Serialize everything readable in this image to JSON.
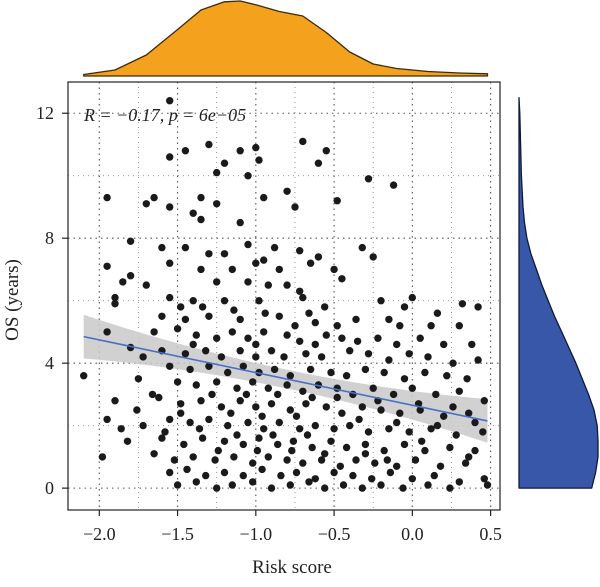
{
  "chart_data": {
    "type": "scatter",
    "xlabel": "Risk score",
    "ylabel": "OS (years)",
    "annotation": "R = −0.17, p = 6e−05",
    "xlim": [
      -2.2,
      0.56
    ],
    "ylim": [
      -0.7,
      13.0
    ],
    "xticks": [
      -2.0,
      -1.5,
      -1.0,
      -0.5,
      0.0,
      0.5
    ],
    "xtick_labels": [
      "−2.0",
      "−1.5",
      "−1.0",
      "−0.5",
      "0.0",
      "0.5"
    ],
    "yticks": [
      0,
      4,
      8,
      12
    ],
    "ytick_labels": [
      "0",
      "4",
      "8",
      "12"
    ],
    "grid": "dotted",
    "point_color": "#1a1a1a",
    "regression": {
      "x": [
        -2.1,
        0.48
      ],
      "y": [
        4.85,
        2.15
      ],
      "ci_half_width_at_ends": 0.7,
      "ci_half_width_center": 0.3,
      "line_color": "#4a6fc7",
      "band_color": "#c9c9c9"
    },
    "top_density": {
      "color": "#f4a21d",
      "x": [
        -2.1,
        -1.9,
        -1.7,
        -1.5,
        -1.35,
        -1.2,
        -1.1,
        -1.0,
        -0.85,
        -0.7,
        -0.55,
        -0.4,
        -0.25,
        -0.1,
        0.1,
        0.3,
        0.48
      ],
      "density": [
        0.02,
        0.08,
        0.28,
        0.62,
        0.88,
        0.99,
        1.0,
        0.95,
        0.86,
        0.8,
        0.58,
        0.32,
        0.16,
        0.1,
        0.06,
        0.04,
        0.03
      ]
    },
    "right_density": {
      "color": "#3857a8",
      "y": [
        0.0,
        0.5,
        1.0,
        1.5,
        2.0,
        2.5,
        3.0,
        3.5,
        4.0,
        4.5,
        5.0,
        5.5,
        6.0,
        6.5,
        7.0,
        7.5,
        8.0,
        8.5,
        9.0,
        10.0,
        11.0,
        12.0,
        12.5
      ],
      "density": [
        0.92,
        0.97,
        1.0,
        1.0,
        0.99,
        0.95,
        0.88,
        0.8,
        0.72,
        0.63,
        0.54,
        0.45,
        0.37,
        0.29,
        0.22,
        0.15,
        0.1,
        0.07,
        0.05,
        0.03,
        0.02,
        0.01,
        0.0
      ]
    },
    "points": [
      [
        -1.55,
        12.4
      ],
      [
        -1.3,
        11.0
      ],
      [
        -1.55,
        10.6
      ],
      [
        -1.45,
        10.8
      ],
      [
        -1.1,
        10.8
      ],
      [
        -1.0,
        10.9
      ],
      [
        -1.2,
        10.4
      ],
      [
        -0.98,
        10.5
      ],
      [
        -0.7,
        11.1
      ],
      [
        -0.55,
        10.8
      ],
      [
        -0.6,
        10.4
      ],
      [
        -1.25,
        10.1
      ],
      [
        -1.05,
        10.0
      ],
      [
        -0.12,
        9.7
      ],
      [
        -0.28,
        9.9
      ],
      [
        -1.65,
        9.3
      ],
      [
        -1.95,
        9.3
      ],
      [
        -1.55,
        9.0
      ],
      [
        -1.7,
        9.1
      ],
      [
        -1.35,
        9.3
      ],
      [
        -1.25,
        9.1
      ],
      [
        -1.4,
        8.8
      ],
      [
        -0.95,
        9.3
      ],
      [
        -0.8,
        9.5
      ],
      [
        -0.75,
        9.0
      ],
      [
        -0.48,
        9.2
      ],
      [
        -1.1,
        8.5
      ],
      [
        -1.35,
        8.6
      ],
      [
        -1.8,
        7.9
      ],
      [
        -1.6,
        7.7
      ],
      [
        -1.45,
        7.7
      ],
      [
        -1.3,
        7.5
      ],
      [
        -1.2,
        7.5
      ],
      [
        -1.05,
        7.8
      ],
      [
        -0.95,
        7.3
      ],
      [
        -0.88,
        7.7
      ],
      [
        -0.72,
        7.6
      ],
      [
        -0.6,
        7.4
      ],
      [
        -0.65,
        7.2
      ],
      [
        -0.32,
        7.7
      ],
      [
        -0.25,
        7.4
      ],
      [
        -1.95,
        7.1
      ],
      [
        -1.8,
        6.8
      ],
      [
        -1.55,
        7.2
      ],
      [
        -1.35,
        7.0
      ],
      [
        -1.15,
        7.0
      ],
      [
        -1.0,
        7.2
      ],
      [
        -0.85,
        7.0
      ],
      [
        -0.5,
        7.0
      ],
      [
        -0.45,
        6.7
      ],
      [
        -1.85,
        6.6
      ],
      [
        -1.7,
        6.5
      ],
      [
        -1.25,
        6.6
      ],
      [
        -1.05,
        6.6
      ],
      [
        -0.92,
        6.5
      ],
      [
        -0.8,
        6.5
      ],
      [
        -0.72,
        6.3
      ],
      [
        -1.9,
        6.1
      ],
      [
        -1.9,
        5.9
      ],
      [
        -1.55,
        6.1
      ],
      [
        -1.4,
        6.0
      ],
      [
        -1.2,
        6.0
      ],
      [
        -0.98,
        6.0
      ],
      [
        -0.7,
        6.1
      ],
      [
        -0.2,
        6.0
      ],
      [
        0.0,
        6.1
      ],
      [
        0.32,
        5.9
      ],
      [
        0.42,
        5.8
      ],
      [
        0.16,
        5.6
      ],
      [
        -0.05,
        5.8
      ],
      [
        -1.6,
        5.5
      ],
      [
        -1.45,
        5.4
      ],
      [
        -1.3,
        5.5
      ],
      [
        -1.1,
        5.4
      ],
      [
        -0.85,
        5.5
      ],
      [
        -0.75,
        5.2
      ],
      [
        -0.62,
        5.3
      ],
      [
        -0.48,
        5.2
      ],
      [
        -0.15,
        5.4
      ],
      [
        0.12,
        5.2
      ],
      [
        -1.95,
        5.0
      ],
      [
        -1.65,
        5.0
      ],
      [
        -1.5,
        5.1
      ],
      [
        -1.38,
        4.9
      ],
      [
        -1.25,
        4.8
      ],
      [
        -1.15,
        5.0
      ],
      [
        -1.05,
        4.8
      ],
      [
        -0.95,
        5.0
      ],
      [
        -0.8,
        4.9
      ],
      [
        -0.72,
        4.7
      ],
      [
        -0.55,
        4.9
      ],
      [
        -0.45,
        4.8
      ],
      [
        -0.35,
        4.7
      ],
      [
        -0.22,
        4.8
      ],
      [
        -0.1,
        4.6
      ],
      [
        0.05,
        4.8
      ],
      [
        0.2,
        4.6
      ],
      [
        0.38,
        4.6
      ],
      [
        -1.8,
        4.5
      ],
      [
        -1.6,
        4.4
      ],
      [
        -1.45,
        4.3
      ],
      [
        -1.32,
        4.4
      ],
      [
        -1.22,
        4.2
      ],
      [
        -1.1,
        4.4
      ],
      [
        -1.0,
        4.2
      ],
      [
        -0.9,
        4.4
      ],
      [
        -0.82,
        4.2
      ],
      [
        -0.68,
        4.3
      ],
      [
        -0.58,
        4.2
      ],
      [
        -0.4,
        4.4
      ],
      [
        -0.28,
        4.3
      ],
      [
        -0.15,
        4.1
      ],
      [
        -0.02,
        4.3
      ],
      [
        0.1,
        4.2
      ],
      [
        0.26,
        4.0
      ],
      [
        0.42,
        4.1
      ],
      [
        -1.55,
        3.9
      ],
      [
        -1.42,
        3.8
      ],
      [
        -1.3,
        3.9
      ],
      [
        -1.18,
        3.7
      ],
      [
        -1.08,
        3.9
      ],
      [
        -0.98,
        3.7
      ],
      [
        -0.88,
        3.8
      ],
      [
        -0.78,
        3.6
      ],
      [
        -0.65,
        3.8
      ],
      [
        -0.52,
        3.7
      ],
      [
        -0.42,
        3.6
      ],
      [
        -0.3,
        3.8
      ],
      [
        -0.18,
        3.7
      ],
      [
        -0.05,
        3.5
      ],
      [
        0.08,
        3.7
      ],
      [
        0.22,
        3.6
      ],
      [
        0.35,
        3.5
      ],
      [
        -2.1,
        3.6
      ],
      [
        -1.75,
        3.5
      ],
      [
        -1.5,
        3.4
      ],
      [
        -1.38,
        3.3
      ],
      [
        -1.25,
        3.4
      ],
      [
        -1.12,
        3.2
      ],
      [
        -1.02,
        3.4
      ],
      [
        -0.92,
        3.2
      ],
      [
        -0.8,
        3.3
      ],
      [
        -0.7,
        3.1
      ],
      [
        -0.6,
        3.3
      ],
      [
        -0.48,
        3.2
      ],
      [
        -0.38,
        3.0
      ],
      [
        -0.25,
        3.2
      ],
      [
        -0.12,
        3.0
      ],
      [
        0.0,
        3.2
      ],
      [
        0.15,
        3.0
      ],
      [
        0.3,
        3.1
      ],
      [
        0.46,
        2.8
      ],
      [
        -1.9,
        2.8
      ],
      [
        -1.62,
        2.9
      ],
      [
        -1.48,
        2.7
      ],
      [
        -1.35,
        2.8
      ],
      [
        -1.22,
        2.6
      ],
      [
        -1.1,
        2.8
      ],
      [
        -1.0,
        2.6
      ],
      [
        -0.9,
        2.7
      ],
      [
        -0.78,
        2.5
      ],
      [
        -0.68,
        2.7
      ],
      [
        -0.55,
        2.6
      ],
      [
        -0.45,
        2.4
      ],
      [
        -0.32,
        2.6
      ],
      [
        -0.2,
        2.5
      ],
      [
        -0.08,
        2.4
      ],
      [
        0.05,
        2.5
      ],
      [
        0.2,
        2.3
      ],
      [
        0.36,
        2.4
      ],
      [
        -1.95,
        2.2
      ],
      [
        -1.72,
        2.0
      ],
      [
        -1.55,
        2.2
      ],
      [
        -1.42,
        2.1
      ],
      [
        -1.3,
        2.2
      ],
      [
        -1.18,
        2.0
      ],
      [
        -1.05,
        2.1
      ],
      [
        -0.95,
        1.9
      ],
      [
        -0.85,
        2.1
      ],
      [
        -0.72,
        1.9
      ],
      [
        -0.62,
        2.0
      ],
      [
        -0.5,
        1.9
      ],
      [
        -0.4,
        2.0
      ],
      [
        -0.28,
        1.8
      ],
      [
        -0.15,
        1.9
      ],
      [
        -0.02,
        1.8
      ],
      [
        0.12,
        1.9
      ],
      [
        0.28,
        1.7
      ],
      [
        0.45,
        1.8
      ],
      [
        -1.82,
        1.5
      ],
      [
        -1.6,
        1.6
      ],
      [
        -1.46,
        1.4
      ],
      [
        -1.34,
        1.6
      ],
      [
        -1.2,
        1.5
      ],
      [
        -1.08,
        1.4
      ],
      [
        -0.98,
        1.6
      ],
      [
        -0.86,
        1.4
      ],
      [
        -0.76,
        1.5
      ],
      [
        -0.64,
        1.3
      ],
      [
        -0.52,
        1.5
      ],
      [
        -0.42,
        1.3
      ],
      [
        -0.3,
        1.4
      ],
      [
        -0.18,
        1.2
      ],
      [
        -0.05,
        1.4
      ],
      [
        0.08,
        1.2
      ],
      [
        0.24,
        1.3
      ],
      [
        0.4,
        1.2
      ],
      [
        -1.98,
        1.0
      ],
      [
        -1.65,
        1.1
      ],
      [
        -1.52,
        0.9
      ],
      [
        -1.4,
        1.0
      ],
      [
        -1.26,
        0.9
      ],
      [
        -1.14,
        1.0
      ],
      [
        -1.02,
        0.8
      ],
      [
        -0.92,
        1.0
      ],
      [
        -0.8,
        0.9
      ],
      [
        -0.7,
        0.8
      ],
      [
        -0.58,
        0.9
      ],
      [
        -0.46,
        0.7
      ],
      [
        -0.36,
        0.9
      ],
      [
        -0.24,
        0.8
      ],
      [
        -0.1,
        0.7
      ],
      [
        0.02,
        0.9
      ],
      [
        0.18,
        0.7
      ],
      [
        0.34,
        0.8
      ],
      [
        -1.55,
        0.5
      ],
      [
        -1.44,
        0.6
      ],
      [
        -1.32,
        0.4
      ],
      [
        -1.2,
        0.5
      ],
      [
        -1.08,
        0.4
      ],
      [
        -0.96,
        0.6
      ],
      [
        -0.84,
        0.4
      ],
      [
        -0.74,
        0.5
      ],
      [
        -0.62,
        0.3
      ],
      [
        -0.5,
        0.5
      ],
      [
        -0.38,
        0.4
      ],
      [
        -0.26,
        0.3
      ],
      [
        -0.14,
        0.5
      ],
      [
        0.0,
        0.3
      ],
      [
        0.14,
        0.4
      ],
      [
        0.3,
        0.2
      ],
      [
        0.46,
        0.3
      ],
      [
        -1.5,
        0.1
      ],
      [
        -1.38,
        0.2
      ],
      [
        -1.25,
        0.0
      ],
      [
        -1.15,
        0.1
      ],
      [
        -1.02,
        0.2
      ],
      [
        -0.9,
        0.0
      ],
      [
        -0.78,
        0.1
      ],
      [
        -0.66,
        0.2
      ],
      [
        -0.56,
        0.0
      ],
      [
        -0.44,
        0.1
      ],
      [
        -0.32,
        0.0
      ],
      [
        -0.2,
        0.1
      ],
      [
        -0.06,
        0.0
      ],
      [
        0.1,
        0.1
      ],
      [
        0.24,
        0.0
      ],
      [
        0.48,
        0.1
      ],
      [
        -1.28,
        3.0
      ],
      [
        -1.16,
        2.4
      ],
      [
        -1.06,
        3.0
      ],
      [
        -0.96,
        2.3
      ],
      [
        -0.86,
        3.0
      ],
      [
        -0.74,
        2.3
      ],
      [
        -0.64,
        2.9
      ],
      [
        -1.24,
        1.2
      ],
      [
        -1.12,
        1.7
      ],
      [
        -0.99,
        1.2
      ],
      [
        -0.89,
        1.7
      ],
      [
        -0.77,
        1.2
      ],
      [
        -0.67,
        1.7
      ],
      [
        -0.56,
        1.1
      ],
      [
        -1.34,
        5.8
      ],
      [
        -1.14,
        5.7
      ],
      [
        -0.94,
        5.6
      ],
      [
        -0.66,
        5.6
      ],
      [
        -0.56,
        5.8
      ],
      [
        -1.48,
        5.8
      ],
      [
        -0.36,
        5.4
      ],
      [
        -0.08,
        5.2
      ],
      [
        0.3,
        5.2
      ],
      [
        -0.62,
        4.6
      ],
      [
        -1.0,
        4.6
      ],
      [
        -1.4,
        4.6
      ],
      [
        -1.72,
        4.2
      ],
      [
        -1.66,
        3.0
      ],
      [
        -1.76,
        2.5
      ],
      [
        -1.86,
        1.9
      ],
      [
        -1.58,
        1.8
      ],
      [
        -1.48,
        2.4
      ],
      [
        -1.36,
        1.9
      ],
      [
        -0.34,
        2.2
      ],
      [
        -0.22,
        2.8
      ],
      [
        -0.1,
        2.1
      ],
      [
        0.04,
        2.7
      ],
      [
        0.16,
        2.0
      ],
      [
        0.26,
        2.6
      ],
      [
        0.4,
        2.1
      ],
      [
        -0.48,
        2.9
      ],
      [
        -0.3,
        1.1
      ],
      [
        -0.16,
        0.9
      ],
      [
        0.06,
        1.5
      ],
      [
        0.36,
        1.0
      ]
    ]
  }
}
